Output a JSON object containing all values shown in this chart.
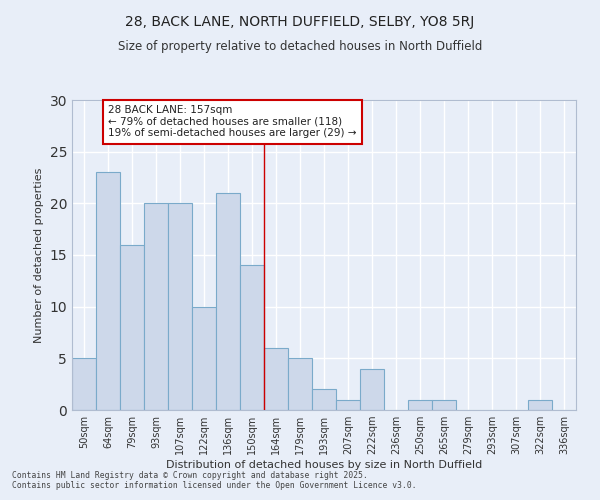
{
  "title1": "28, BACK LANE, NORTH DUFFIELD, SELBY, YO8 5RJ",
  "title2": "Size of property relative to detached houses in North Duffield",
  "xlabel": "Distribution of detached houses by size in North Duffield",
  "ylabel": "Number of detached properties",
  "categories": [
    "50sqm",
    "64sqm",
    "79sqm",
    "93sqm",
    "107sqm",
    "122sqm",
    "136sqm",
    "150sqm",
    "164sqm",
    "179sqm",
    "193sqm",
    "207sqm",
    "222sqm",
    "236sqm",
    "250sqm",
    "265sqm",
    "279sqm",
    "293sqm",
    "307sqm",
    "322sqm",
    "336sqm"
  ],
  "values": [
    5,
    23,
    16,
    20,
    20,
    10,
    21,
    14,
    6,
    5,
    2,
    1,
    4,
    0,
    1,
    1,
    0,
    0,
    0,
    1,
    0
  ],
  "bar_color": "#cdd8ea",
  "bar_edge_color": "#7aaaca",
  "background_color": "#e8eef8",
  "grid_color": "#ffffff",
  "vline_x_index": 7.5,
  "vline_color": "#cc0000",
  "annotation_text": "28 BACK LANE: 157sqm\n← 79% of detached houses are smaller (118)\n19% of semi-detached houses are larger (29) →",
  "annotation_box_color": "white",
  "annotation_box_edge": "#cc0000",
  "ylim": [
    0,
    30
  ],
  "yticks": [
    0,
    5,
    10,
    15,
    20,
    25,
    30
  ],
  "footer": "Contains HM Land Registry data © Crown copyright and database right 2025.\nContains public sector information licensed under the Open Government Licence v3.0."
}
